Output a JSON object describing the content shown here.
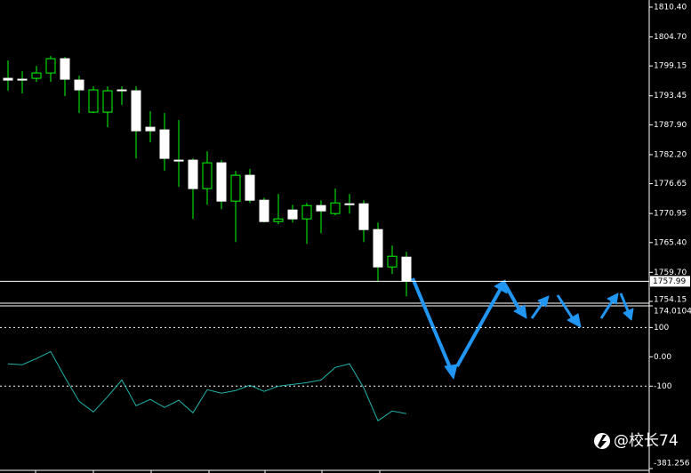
{
  "chart_data": [
    {
      "type": "candlestick",
      "open": [
        1796.79,
        1796.62,
        1796.79,
        1797.81,
        1800.54,
        1796.45,
        1790.33,
        1790.33,
        1794.58,
        1794.41,
        1787.44,
        1786.93,
        1781.15,
        1781.15,
        1775.71,
        1780.64,
        1773.32,
        1778.26,
        1773.49,
        1769.41,
        1771.62,
        1769.92,
        1772.47,
        1770.94,
        1772.81,
        1772.81,
        1767.88,
        1760.74,
        1762.61
      ],
      "high": [
        1800.2,
        1798.15,
        1799.17,
        1801.05,
        1800.88,
        1797.3,
        1795.26,
        1795.26,
        1795.26,
        1795.26,
        1790.5,
        1790.16,
        1788.8,
        1781.49,
        1782.85,
        1781.15,
        1779.11,
        1779.45,
        1774.0,
        1774.69,
        1772.64,
        1772.98,
        1773.49,
        1775.71,
        1774.69,
        1773.49,
        1769.24,
        1764.82,
        1763.63
      ],
      "low": [
        1794.41,
        1793.9,
        1796.11,
        1796.11,
        1793.39,
        1790.16,
        1790.16,
        1787.44,
        1791.69,
        1781.49,
        1784.55,
        1779.11,
        1776.05,
        1769.92,
        1772.64,
        1771.79,
        1765.5,
        1772.98,
        1769.24,
        1768.9,
        1769.24,
        1765.16,
        1767.2,
        1770.6,
        1770.94,
        1765.5,
        1757.85,
        1759.38,
        1755.13
      ],
      "close": [
        1796.45,
        1796.62,
        1797.81,
        1800.54,
        1796.62,
        1794.58,
        1794.58,
        1794.41,
        1794.41,
        1786.76,
        1786.76,
        1781.49,
        1781.15,
        1775.71,
        1780.64,
        1773.32,
        1778.26,
        1773.49,
        1769.41,
        1769.92,
        1769.92,
        1772.47,
        1771.45,
        1772.98,
        1772.81,
        1767.88,
        1760.74,
        1762.78,
        1757.99
      ],
      "up_color": "#000000",
      "down_color": "#ffffff",
      "wick_color": "#00ff00",
      "last_price": 1757.99,
      "ylim": [
        1753.47,
        1811.76
      ],
      "yticks": [
        {
          "value": 1810.4,
          "label": "1810.40"
        },
        {
          "value": 1804.7,
          "label": "1804.70"
        },
        1799.15,
        1793.45,
        {
          "value": 1787.9,
          "label": "1787.90"
        },
        {
          "value": 1782.2,
          "label": "1782.20"
        },
        1776.65,
        1770.95,
        {
          "value": 1765.4,
          "label": "1765.40"
        },
        {
          "value": 1759.7,
          "label": "1759.70"
        },
        1754.15
      ]
    },
    {
      "type": "line",
      "values": [
        -24,
        -27,
        -6,
        18,
        -70,
        -152,
        -188,
        -136,
        -79,
        -167,
        -145,
        -173,
        -148,
        -191,
        -112,
        -124,
        -115,
        -97,
        -118,
        -100,
        -94,
        -88,
        -79,
        -36,
        -24,
        -106,
        -218,
        -185,
        -194
      ],
      "color": "#20b2aa",
      "levels": [
        100,
        -100
      ],
      "ylim": [
        -381.256,
        174.0104
      ],
      "yticks": [
        174.0104,
        100,
        {
          "value": 0,
          "label": "0.00"
        },
        -100,
        -381.256
      ]
    }
  ],
  "watermark": "@校长74"
}
